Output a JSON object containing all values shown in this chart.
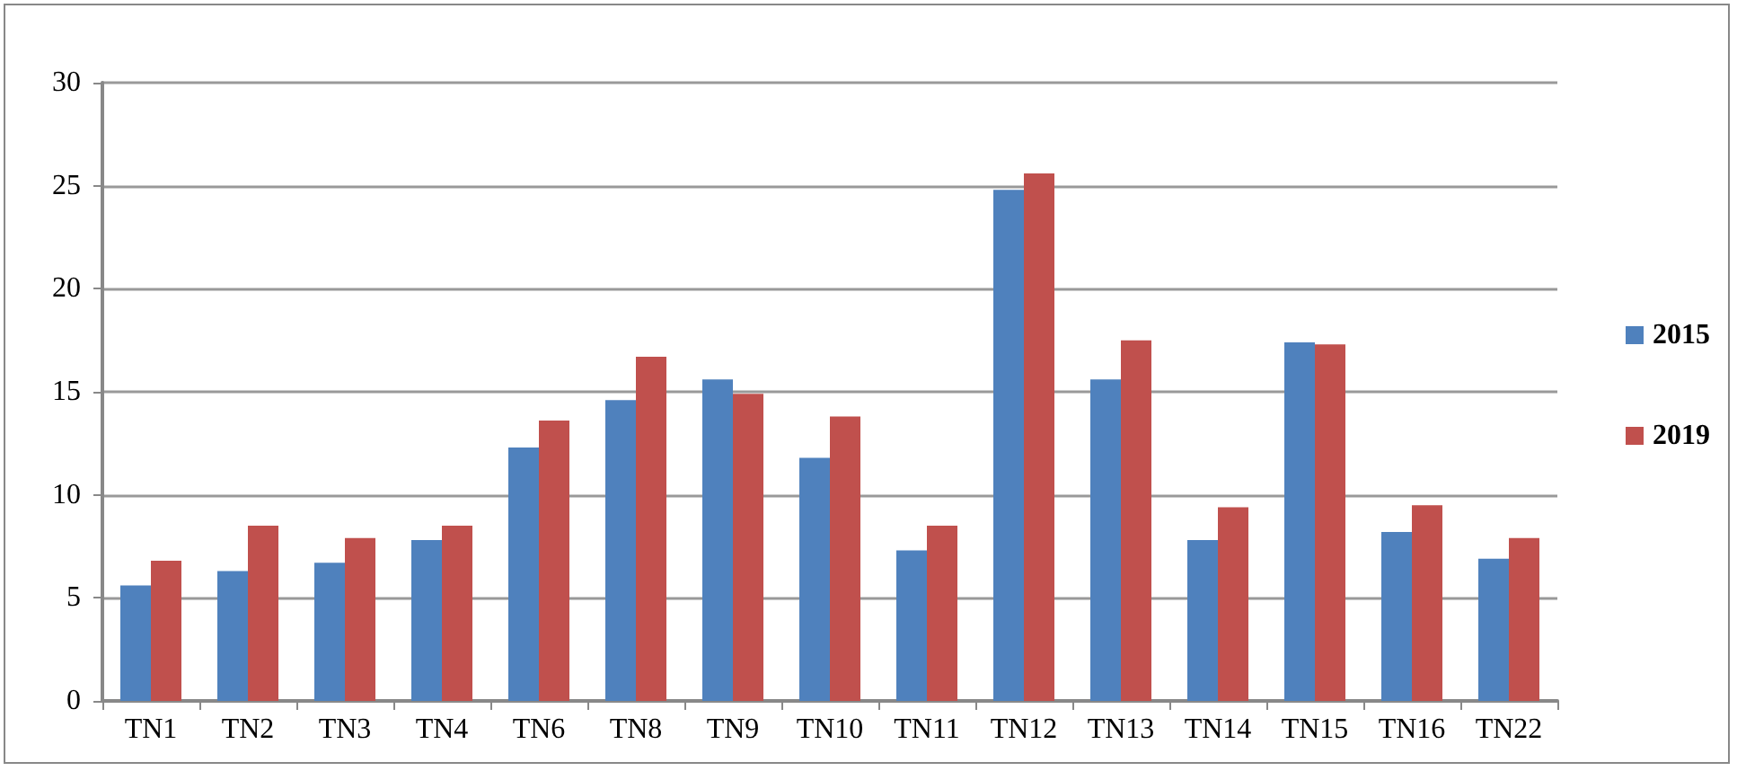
{
  "chart_data": {
    "type": "bar",
    "categories": [
      "TN1",
      "TN2",
      "TN3",
      "TN4",
      "TN6",
      "TN8",
      "TN9",
      "TN10",
      "TN11",
      "TN12",
      "TN13",
      "TN14",
      "TN15",
      "TN16",
      "TN22"
    ],
    "series": [
      {
        "name": "2015",
        "color": "#4f81bd",
        "values": [
          5.6,
          6.3,
          6.7,
          7.8,
          12.3,
          14.6,
          15.6,
          11.8,
          7.3,
          24.8,
          15.6,
          7.8,
          17.4,
          8.2,
          6.9
        ]
      },
      {
        "name": "2019",
        "color": "#c0504d",
        "values": [
          6.8,
          8.5,
          7.9,
          8.5,
          13.6,
          16.7,
          14.9,
          13.8,
          8.5,
          25.6,
          17.5,
          9.4,
          17.3,
          9.5,
          7.9
        ]
      }
    ],
    "ylim": [
      0,
      30
    ],
    "yticks": [
      0,
      5,
      10,
      15,
      20,
      25,
      30
    ],
    "grid": "y",
    "legend": "right"
  }
}
